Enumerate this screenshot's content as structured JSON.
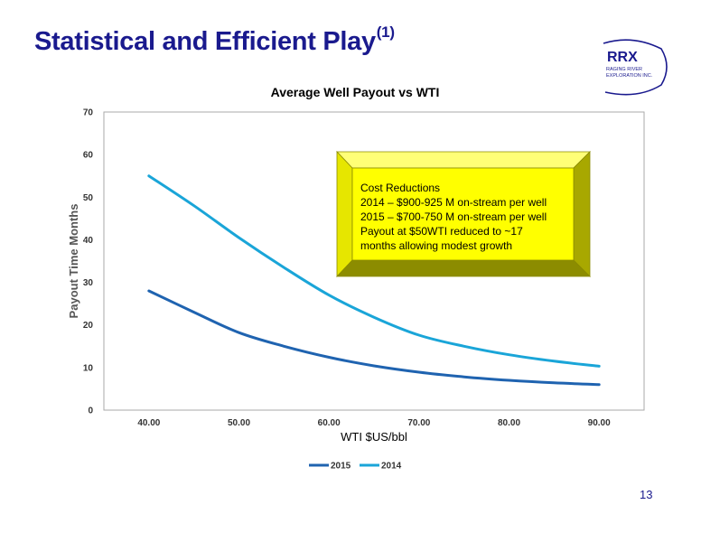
{
  "slide": {
    "title": "Statistical and Efficient Play",
    "title_sup": "(1)",
    "page_number": "13"
  },
  "logo": {
    "text": "RRX",
    "subtext_1": "RAGING RIVER",
    "subtext_2": "EXPLORATION INC."
  },
  "callout": {
    "lines": [
      "Cost Reductions",
      "2014 – $900-925 M on-stream per well",
      "2015 – $700-750 M on-stream per well",
      "Payout at $50WTI reduced to ~17",
      "months allowing modest growth"
    ],
    "fill_color": "#ffff00"
  },
  "chart_data": {
    "type": "line",
    "title": "Average Well Payout vs WTI",
    "xlabel": "WTI $US/bbl",
    "ylabel": "Payout Time Months",
    "xlim": [
      35,
      95
    ],
    "ylim": [
      0,
      70
    ],
    "x_ticks": [
      "40.00",
      "50.00",
      "60.00",
      "70.00",
      "80.00",
      "90.00"
    ],
    "y_ticks": [
      "0",
      "10",
      "20",
      "30",
      "40",
      "50",
      "60",
      "70"
    ],
    "grid": false,
    "legend_position": "bottom",
    "series": [
      {
        "name": "2015",
        "color": "#1f63b0",
        "x": [
          40,
          45,
          50,
          55,
          60,
          65,
          70,
          75,
          80,
          85,
          90
        ],
        "y": [
          28,
          23,
          18.2,
          15,
          12.4,
          10.4,
          8.9,
          7.8,
          7,
          6.4,
          6
        ]
      },
      {
        "name": "2014",
        "color": "#1aa5d8",
        "x": [
          40,
          45,
          50,
          55,
          60,
          65,
          70,
          75,
          80,
          85,
          90
        ],
        "y": [
          55,
          48,
          40.5,
          33.5,
          27,
          21.8,
          17.6,
          15,
          13,
          11.5,
          10.3
        ]
      }
    ]
  }
}
